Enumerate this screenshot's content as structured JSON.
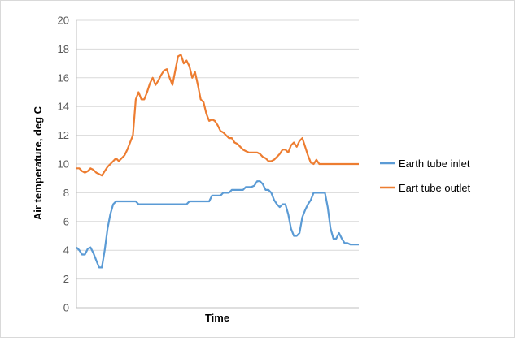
{
  "chart_data": {
    "type": "line",
    "title": "",
    "xlabel": "Time",
    "ylabel": "Air temperature, deg C",
    "ylim": [
      0,
      20
    ],
    "yticks": [
      "0",
      "2",
      "4",
      "6",
      "8",
      "10",
      "12",
      "14",
      "16",
      "18",
      "20"
    ],
    "grid": "horizontal",
    "legend_position": "right",
    "x": [
      0,
      2,
      4,
      6,
      8,
      10,
      12,
      14,
      16,
      18,
      20,
      22,
      24,
      26,
      28,
      30,
      32,
      34,
      36,
      38,
      40,
      42,
      44,
      46,
      48,
      50,
      52,
      54,
      56,
      58,
      60,
      62,
      64,
      66,
      68,
      70,
      72,
      74,
      76,
      78,
      80,
      82,
      84,
      86,
      88,
      90,
      92,
      94,
      96,
      98,
      100,
      102,
      104,
      106,
      108,
      110,
      112,
      114,
      116,
      118,
      120,
      122,
      124,
      126,
      128,
      130,
      132,
      134,
      136,
      138,
      140,
      142,
      144,
      146,
      148,
      150,
      152,
      154,
      156,
      158,
      160,
      162,
      164,
      166,
      168,
      170,
      172,
      174,
      176,
      178,
      180,
      182,
      184,
      186,
      188,
      190,
      192,
      194,
      196,
      198,
      200
    ],
    "series": [
      {
        "name": "Earth tube inlet",
        "color": "#5b9bd5",
        "values": [
          4.2,
          4.0,
          3.7,
          3.7,
          4.1,
          4.2,
          3.8,
          3.3,
          2.8,
          2.8,
          4.0,
          5.5,
          6.5,
          7.2,
          7.4,
          7.4,
          7.4,
          7.4,
          7.4,
          7.4,
          7.4,
          7.4,
          7.2,
          7.2,
          7.2,
          7.2,
          7.2,
          7.2,
          7.2,
          7.2,
          7.2,
          7.2,
          7.2,
          7.2,
          7.2,
          7.2,
          7.2,
          7.2,
          7.2,
          7.2,
          7.4,
          7.4,
          7.4,
          7.4,
          7.4,
          7.4,
          7.4,
          7.4,
          7.8,
          7.8,
          7.8,
          7.8,
          8.0,
          8.0,
          8.0,
          8.2,
          8.2,
          8.2,
          8.2,
          8.2,
          8.4,
          8.4,
          8.4,
          8.5,
          8.8,
          8.8,
          8.6,
          8.2,
          8.2,
          8.0,
          7.5,
          7.2,
          7.0,
          7.2,
          7.2,
          6.5,
          5.5,
          5.0,
          5.0,
          5.2,
          6.3,
          6.8,
          7.2,
          7.5,
          8.0,
          8.0,
          8.0,
          8.0,
          8.0,
          7.0,
          5.5,
          4.8,
          4.8,
          5.2,
          4.8,
          4.5,
          4.5,
          4.4,
          4.4,
          4.4,
          4.4
        ]
      },
      {
        "name": "Eart tube outlet",
        "color": "#ed7d31",
        "values": [
          9.7,
          9.7,
          9.5,
          9.4,
          9.5,
          9.7,
          9.6,
          9.4,
          9.3,
          9.2,
          9.5,
          9.8,
          10.0,
          10.2,
          10.4,
          10.2,
          10.4,
          10.6,
          11.0,
          11.5,
          12.0,
          14.5,
          15.0,
          14.5,
          14.5,
          15.0,
          15.6,
          16.0,
          15.5,
          15.8,
          16.2,
          16.5,
          16.6,
          16.0,
          15.5,
          16.5,
          17.5,
          17.6,
          17.0,
          17.2,
          16.8,
          16.0,
          16.4,
          15.5,
          14.5,
          14.3,
          13.5,
          13.0,
          13.1,
          13.0,
          12.7,
          12.3,
          12.2,
          12.0,
          11.8,
          11.8,
          11.5,
          11.4,
          11.2,
          11.0,
          10.9,
          10.8,
          10.8,
          10.8,
          10.8,
          10.7,
          10.5,
          10.4,
          10.2,
          10.2,
          10.3,
          10.5,
          10.7,
          11.0,
          11.0,
          10.8,
          11.3,
          11.5,
          11.2,
          11.6,
          11.8,
          11.2,
          10.6,
          10.1,
          10.0,
          10.3,
          10.0,
          10.0,
          10.0,
          10.0,
          10.0,
          10.0,
          10.0,
          10.0,
          10.0,
          10.0,
          10.0,
          10.0,
          10.0,
          10.0,
          10.0
        ]
      }
    ]
  }
}
